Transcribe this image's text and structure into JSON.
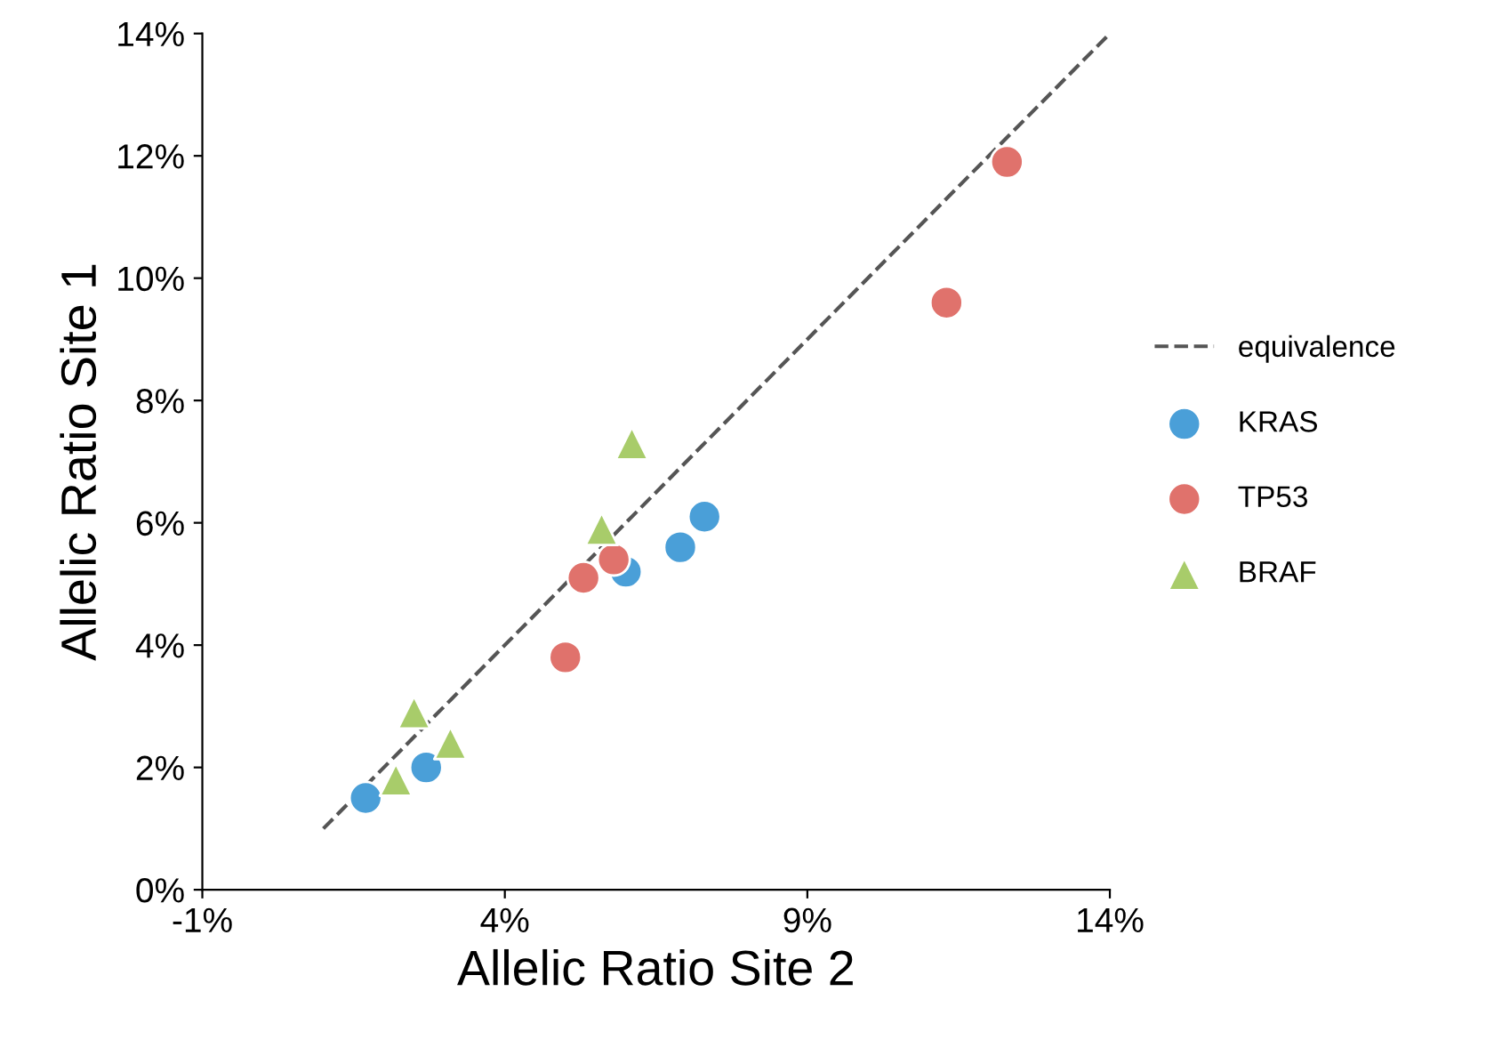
{
  "chart_data": {
    "type": "scatter",
    "xlabel": "Allelic Ratio Site 2",
    "ylabel": "Allelic Ratio Site 1",
    "xlim": [
      -1,
      14
    ],
    "ylim": [
      0,
      14
    ],
    "xticks": [
      {
        "value": -1,
        "label": "-1%"
      },
      {
        "value": 4,
        "label": "4%"
      },
      {
        "value": 9,
        "label": "9%"
      },
      {
        "value": 14,
        "label": "14%"
      }
    ],
    "yticks": [
      {
        "value": 0,
        "label": "0%"
      },
      {
        "value": 2,
        "label": "2%"
      },
      {
        "value": 4,
        "label": "4%"
      },
      {
        "value": 6,
        "label": "6%"
      },
      {
        "value": 8,
        "label": "8%"
      },
      {
        "value": 10,
        "label": "10%"
      },
      {
        "value": 12,
        "label": "12%"
      },
      {
        "value": 14,
        "label": "14%"
      }
    ],
    "grid": false,
    "legend": "right",
    "series": [
      {
        "name": "equivalence",
        "type": "line",
        "line_style": "dashed",
        "marker": "none",
        "color": "#555555",
        "x": [
          1,
          14
        ],
        "values": [
          1,
          14
        ]
      },
      {
        "name": "KRAS",
        "marker": "circle",
        "color": "#4a9fd8",
        "x": [
          1.7,
          2.7,
          6.0,
          6.9,
          7.3
        ],
        "values": [
          1.5,
          2.0,
          5.2,
          5.6,
          6.1
        ]
      },
      {
        "name": "TP53",
        "marker": "circle",
        "color": "#e0726c",
        "x": [
          5.0,
          5.3,
          5.8,
          11.3,
          12.3
        ],
        "values": [
          3.8,
          5.1,
          5.4,
          9.6,
          11.9
        ]
      },
      {
        "name": "BRAF",
        "marker": "triangle",
        "color": "#a8cc6a",
        "x": [
          2.2,
          2.5,
          3.1,
          5.6,
          6.1
        ],
        "values": [
          1.8,
          2.9,
          2.4,
          5.9,
          7.3
        ]
      }
    ]
  }
}
